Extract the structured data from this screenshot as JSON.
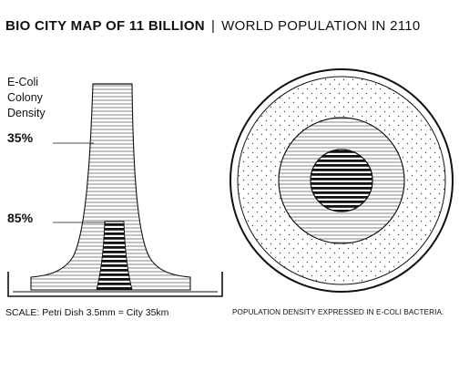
{
  "title": {
    "bold": "BIO CITY MAP OF 11 BILLION",
    "separator": "|",
    "light": "WORLD POPULATION IN 2110"
  },
  "legend": {
    "line1": "E-Coli",
    "line2": "Colony",
    "line3": "Density"
  },
  "levels": [
    {
      "label": "35%"
    },
    {
      "label": "85%"
    }
  ],
  "scale_text": "SCALE: Petri Dish 3.5mm = City 35km",
  "caption": "POPULATION DENSITY EXPRESSED IN E-COLI BACTERIA."
}
